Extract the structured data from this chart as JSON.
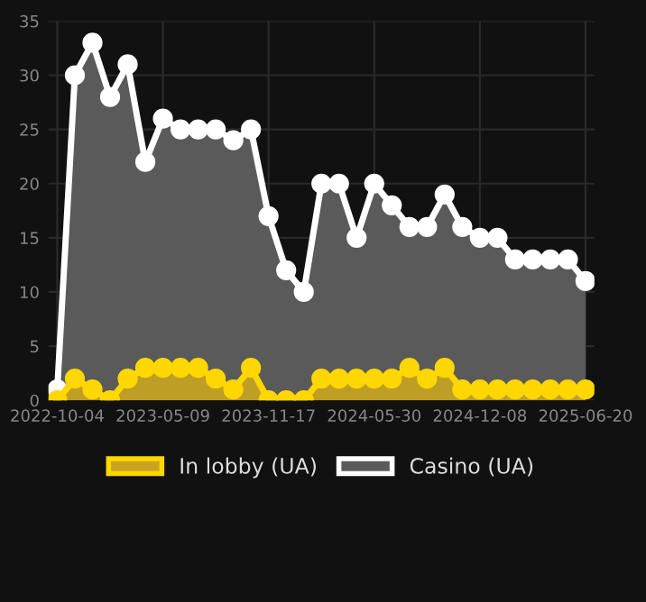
{
  "chart_data": {
    "type": "area",
    "categories": [
      "2022-10-04",
      null,
      null,
      null,
      null,
      null,
      "2023-05-09",
      null,
      null,
      null,
      null,
      null,
      "2023-11-17",
      null,
      null,
      null,
      null,
      null,
      "2024-05-30",
      null,
      null,
      null,
      null,
      null,
      "2024-12-08",
      null,
      null,
      null,
      null,
      null,
      "2025-06-20"
    ],
    "series": [
      {
        "name": "In lobby (UA)",
        "color": "#ffd700",
        "values": [
          0,
          2,
          1,
          0,
          2,
          3,
          3,
          3,
          3,
          2,
          1,
          3,
          0,
          0,
          0,
          2,
          2,
          2,
          2,
          2,
          3,
          2,
          3,
          1,
          1,
          1,
          1,
          1,
          1,
          1,
          1
        ]
      },
      {
        "name": "Casino (UA)",
        "color": "#ffffff",
        "values": [
          1,
          30,
          33,
          28,
          31,
          22,
          26,
          25,
          25,
          25,
          24,
          25,
          17,
          12,
          10,
          20,
          20,
          15,
          20,
          18,
          16,
          16,
          19,
          16,
          15,
          15,
          13,
          13,
          13,
          13,
          11
        ]
      }
    ],
    "ylim": [
      0,
      35
    ],
    "yticks": [
      0,
      5,
      10,
      15,
      20,
      25,
      30,
      35
    ],
    "grid": true,
    "legend": "bottom",
    "marker": "circle",
    "line_style": "solid"
  }
}
